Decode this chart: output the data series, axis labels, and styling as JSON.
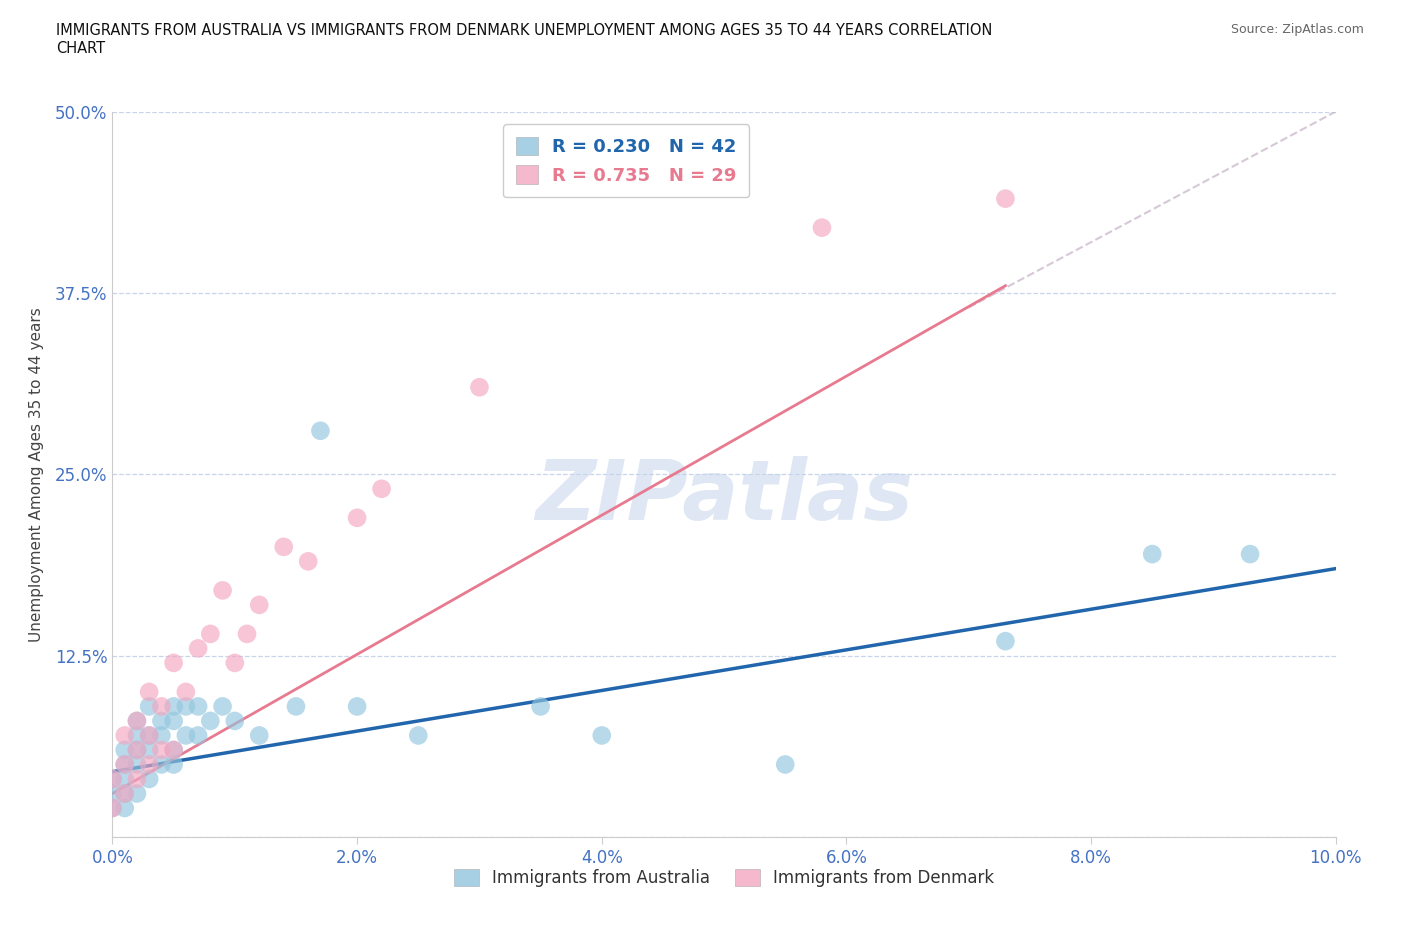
{
  "title": "IMMIGRANTS FROM AUSTRALIA VS IMMIGRANTS FROM DENMARK UNEMPLOYMENT AMONG AGES 35 TO 44 YEARS CORRELATION\nCHART",
  "source": "Source: ZipAtlas.com",
  "ylabel": "Unemployment Among Ages 35 to 44 years",
  "xlim": [
    0.0,
    0.1
  ],
  "ylim": [
    0.0,
    0.5
  ],
  "xticks": [
    0.0,
    0.02,
    0.04,
    0.06,
    0.08,
    0.1
  ],
  "yticks": [
    0.0,
    0.125,
    0.25,
    0.375,
    0.5
  ],
  "xticklabels": [
    "0.0%",
    "2.0%",
    "4.0%",
    "6.0%",
    "8.0%",
    "10.0%"
  ],
  "yticklabels": [
    "",
    "12.5%",
    "25.0%",
    "37.5%",
    "50.0%"
  ],
  "australia_R": 0.23,
  "australia_N": 42,
  "denmark_R": 0.735,
  "denmark_N": 29,
  "australia_color": "#92c5de",
  "denmark_color": "#f4a6c0",
  "australia_line_color": "#2166ac",
  "denmark_line_color": "#e87a90",
  "grid_color": "#c8d4e8",
  "watermark": "ZIPatlas",
  "australia_x": [
    0.0,
    0.0,
    0.0,
    0.001,
    0.001,
    0.001,
    0.001,
    0.001,
    0.002,
    0.002,
    0.002,
    0.002,
    0.002,
    0.003,
    0.003,
    0.003,
    0.003,
    0.004,
    0.004,
    0.004,
    0.005,
    0.005,
    0.005,
    0.005,
    0.006,
    0.006,
    0.007,
    0.007,
    0.008,
    0.009,
    0.01,
    0.012,
    0.015,
    0.017,
    0.02,
    0.025,
    0.035,
    0.04,
    0.055,
    0.073,
    0.085,
    0.093
  ],
  "australia_y": [
    0.02,
    0.03,
    0.04,
    0.02,
    0.03,
    0.04,
    0.05,
    0.06,
    0.03,
    0.05,
    0.06,
    0.07,
    0.08,
    0.04,
    0.06,
    0.07,
    0.09,
    0.05,
    0.07,
    0.08,
    0.05,
    0.06,
    0.08,
    0.09,
    0.07,
    0.09,
    0.07,
    0.09,
    0.08,
    0.09,
    0.08,
    0.07,
    0.09,
    0.28,
    0.09,
    0.07,
    0.09,
    0.07,
    0.05,
    0.135,
    0.195,
    0.195
  ],
  "denmark_x": [
    0.0,
    0.0,
    0.001,
    0.001,
    0.001,
    0.002,
    0.002,
    0.002,
    0.003,
    0.003,
    0.003,
    0.004,
    0.004,
    0.005,
    0.005,
    0.006,
    0.007,
    0.008,
    0.009,
    0.01,
    0.011,
    0.012,
    0.014,
    0.016,
    0.02,
    0.022,
    0.03,
    0.058,
    0.073
  ],
  "denmark_y": [
    0.02,
    0.04,
    0.03,
    0.05,
    0.07,
    0.04,
    0.06,
    0.08,
    0.05,
    0.07,
    0.1,
    0.06,
    0.09,
    0.06,
    0.12,
    0.1,
    0.13,
    0.14,
    0.17,
    0.12,
    0.14,
    0.16,
    0.2,
    0.19,
    0.22,
    0.24,
    0.31,
    0.42,
    0.44
  ],
  "aus_trendline": [
    0.0,
    0.1,
    0.045,
    0.185
  ],
  "den_trendline": [
    0.0,
    0.073,
    0.03,
    0.38
  ],
  "den_dashed_ext": [
    0.07,
    0.1,
    0.365,
    0.5
  ],
  "background_color": "#ffffff"
}
